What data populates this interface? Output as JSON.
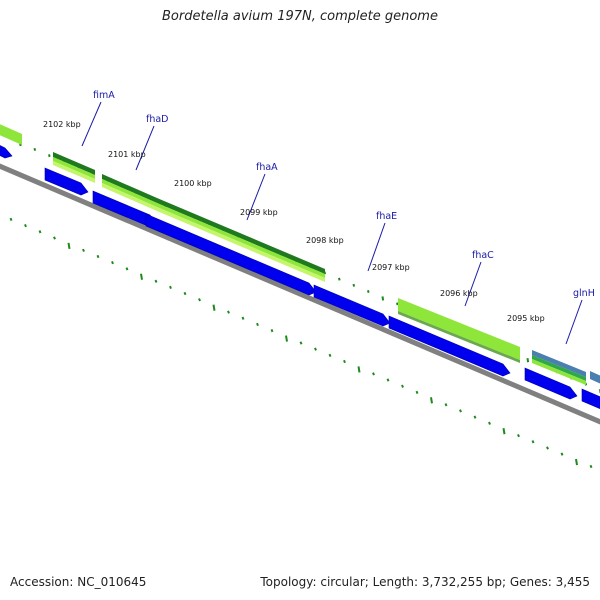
{
  "title": "Bordetella avium 197N, complete genome",
  "footer": {
    "accession": "Accession: NC_010645",
    "summary": "Topology: circular; Length: 3,732,255 bp; Genes: 3,455"
  },
  "ticks": [
    {
      "label": "2102 kbp",
      "value": 2102
    },
    {
      "label": "2101 kbp",
      "value": 2101
    },
    {
      "label": "2100 kbp",
      "value": 2100
    },
    {
      "label": "2099 kbp",
      "value": 2099
    },
    {
      "label": "2098 kbp",
      "value": 2098
    },
    {
      "label": "2097 kbp",
      "value": 2097
    },
    {
      "label": "2096 kbp",
      "value": 2096
    },
    {
      "label": "2095 kbp",
      "value": 2095
    }
  ],
  "genes": [
    {
      "name": "fimA"
    },
    {
      "name": "fhaD"
    },
    {
      "name": "fhaA"
    },
    {
      "name": "fhaE"
    },
    {
      "name": "fhaC"
    },
    {
      "name": "glnH"
    }
  ],
  "colors": {
    "cds": "#0000ee",
    "gc_high": "#1f7a1f",
    "gc_light": "#8ee63a",
    "gc_pale": "#c4f56a",
    "backbone": "#808080",
    "tick_green": "#1d8a1d",
    "label": "#1a1aa8",
    "steel": "#4a7fb0"
  }
}
